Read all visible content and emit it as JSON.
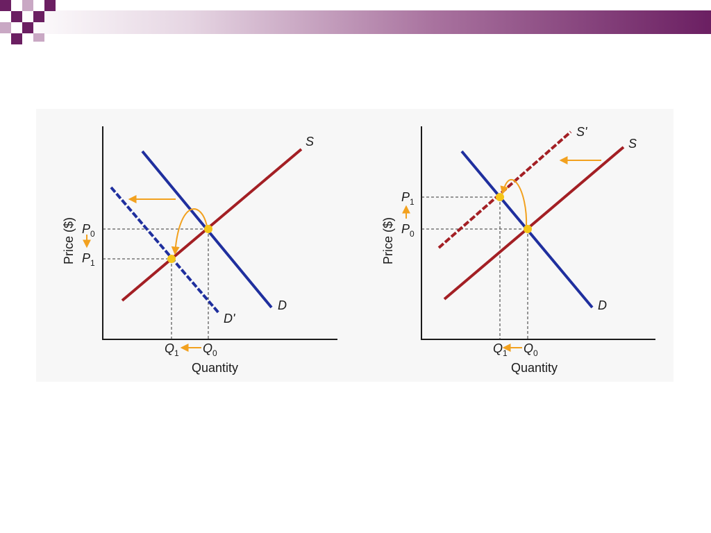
{
  "colors": {
    "decor_purple": "#6b1f62",
    "decor_light": "#c9a8c4",
    "supply": "#a31f24",
    "demand": "#1f2f9e",
    "arrow": "#f2a11f",
    "equilibrium_point": "#f5c518",
    "axis": "#1a1a1a"
  },
  "left_panel": {
    "y_axis_label": "Price ($)",
    "x_axis_label": "Quantity",
    "price_labels": [
      {
        "base": "P",
        "sub": "0"
      },
      {
        "base": "P",
        "sub": "1"
      }
    ],
    "quantity_labels": [
      {
        "base": "Q",
        "sub": "1"
      },
      {
        "base": "Q",
        "sub": "0"
      }
    ],
    "curve_labels": {
      "supply": "S",
      "demand": "D",
      "demand_shifted": "D'"
    },
    "price_change": "decrease",
    "quantity_change": "decrease"
  },
  "right_panel": {
    "y_axis_label": "Price ($)",
    "x_axis_label": "Quantity",
    "price_labels": [
      {
        "base": "P",
        "sub": "1"
      },
      {
        "base": "P",
        "sub": "0"
      }
    ],
    "quantity_labels": [
      {
        "base": "Q",
        "sub": "1"
      },
      {
        "base": "Q",
        "sub": "0"
      }
    ],
    "curve_labels": {
      "supply_shifted": "S'",
      "supply": "S",
      "demand": "D"
    },
    "price_change": "increase",
    "quantity_change": "decrease"
  }
}
